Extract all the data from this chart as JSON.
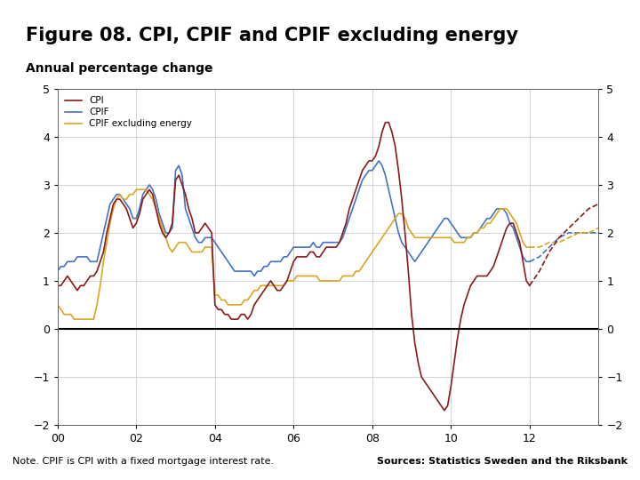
{
  "title": "Figure 08. CPI, CPIF and CPIF excluding energy",
  "subtitle": "Annual percentage change",
  "note": "Note. CPIF is CPI with a fixed mortgage interest rate.",
  "source": "Sources: Statistics Sweden and the Riksbank",
  "ylim": [
    -2,
    5
  ],
  "yticks": [
    -2,
    -1,
    0,
    1,
    2,
    3,
    4,
    5
  ],
  "xlim": [
    2000.0,
    2013.75
  ],
  "xtick_labels": [
    "00",
    "02",
    "04",
    "06",
    "08",
    "10",
    "12"
  ],
  "xtick_positions": [
    2000,
    2002,
    2004,
    2006,
    2008,
    2010,
    2012
  ],
  "forecast_start": 2012.0,
  "cpi_color": "#8B1A1A",
  "cpif_color": "#4472C4",
  "cpifex_color": "#DAA520",
  "background_color": "#FFFFFF",
  "bar_color": "#1F3864",
  "title_fontsize": 15,
  "subtitle_fontsize": 10,
  "note_fontsize": 8,
  "cpi_x": [
    2000.0,
    2000.083,
    2000.167,
    2000.25,
    2000.333,
    2000.417,
    2000.5,
    2000.583,
    2000.667,
    2000.75,
    2000.833,
    2000.917,
    2001.0,
    2001.083,
    2001.167,
    2001.25,
    2001.333,
    2001.417,
    2001.5,
    2001.583,
    2001.667,
    2001.75,
    2001.833,
    2001.917,
    2002.0,
    2002.083,
    2002.167,
    2002.25,
    2002.333,
    2002.417,
    2002.5,
    2002.583,
    2002.667,
    2002.75,
    2002.833,
    2002.917,
    2003.0,
    2003.083,
    2003.167,
    2003.25,
    2003.333,
    2003.417,
    2003.5,
    2003.583,
    2003.667,
    2003.75,
    2003.833,
    2003.917,
    2004.0,
    2004.083,
    2004.167,
    2004.25,
    2004.333,
    2004.417,
    2004.5,
    2004.583,
    2004.667,
    2004.75,
    2004.833,
    2004.917,
    2005.0,
    2005.083,
    2005.167,
    2005.25,
    2005.333,
    2005.417,
    2005.5,
    2005.583,
    2005.667,
    2005.75,
    2005.833,
    2005.917,
    2006.0,
    2006.083,
    2006.167,
    2006.25,
    2006.333,
    2006.417,
    2006.5,
    2006.583,
    2006.667,
    2006.75,
    2006.833,
    2006.917,
    2007.0,
    2007.083,
    2007.167,
    2007.25,
    2007.333,
    2007.417,
    2007.5,
    2007.583,
    2007.667,
    2007.75,
    2007.833,
    2007.917,
    2008.0,
    2008.083,
    2008.167,
    2008.25,
    2008.333,
    2008.417,
    2008.5,
    2008.583,
    2008.667,
    2008.75,
    2008.833,
    2008.917,
    2009.0,
    2009.083,
    2009.167,
    2009.25,
    2009.333,
    2009.417,
    2009.5,
    2009.583,
    2009.667,
    2009.75,
    2009.833,
    2009.917,
    2010.0,
    2010.083,
    2010.167,
    2010.25,
    2010.333,
    2010.417,
    2010.5,
    2010.583,
    2010.667,
    2010.75,
    2010.833,
    2010.917,
    2011.0,
    2011.083,
    2011.167,
    2011.25,
    2011.333,
    2011.417,
    2011.5,
    2011.583,
    2011.667,
    2011.75,
    2011.833,
    2011.917,
    2012.0
  ],
  "cpi_y": [
    0.9,
    0.9,
    1.0,
    1.1,
    1.0,
    0.9,
    0.8,
    0.9,
    0.9,
    1.0,
    1.1,
    1.1,
    1.2,
    1.4,
    1.6,
    2.0,
    2.3,
    2.6,
    2.7,
    2.7,
    2.6,
    2.5,
    2.3,
    2.1,
    2.2,
    2.4,
    2.7,
    2.8,
    2.9,
    2.8,
    2.5,
    2.2,
    2.0,
    1.9,
    2.0,
    2.2,
    3.1,
    3.2,
    3.0,
    2.8,
    2.5,
    2.3,
    2.0,
    2.0,
    2.1,
    2.2,
    2.1,
    2.0,
    0.5,
    0.4,
    0.4,
    0.3,
    0.3,
    0.2,
    0.2,
    0.2,
    0.3,
    0.3,
    0.2,
    0.3,
    0.5,
    0.6,
    0.7,
    0.8,
    0.9,
    1.0,
    0.9,
    0.8,
    0.8,
    0.9,
    1.0,
    1.2,
    1.4,
    1.5,
    1.5,
    1.5,
    1.5,
    1.6,
    1.6,
    1.5,
    1.5,
    1.6,
    1.7,
    1.7,
    1.7,
    1.7,
    1.8,
    2.0,
    2.2,
    2.5,
    2.7,
    2.9,
    3.1,
    3.3,
    3.4,
    3.5,
    3.5,
    3.6,
    3.8,
    4.1,
    4.3,
    4.3,
    4.1,
    3.8,
    3.3,
    2.7,
    2.0,
    1.2,
    0.3,
    -0.3,
    -0.7,
    -1.0,
    -1.1,
    -1.2,
    -1.3,
    -1.4,
    -1.5,
    -1.6,
    -1.7,
    -1.6,
    -1.2,
    -0.7,
    -0.2,
    0.2,
    0.5,
    0.7,
    0.9,
    1.0,
    1.1,
    1.1,
    1.1,
    1.1,
    1.2,
    1.3,
    1.5,
    1.7,
    1.9,
    2.1,
    2.2,
    2.2,
    2.0,
    1.8,
    1.4,
    1.0,
    0.9
  ],
  "cpif_x": [
    2000.0,
    2000.083,
    2000.167,
    2000.25,
    2000.333,
    2000.417,
    2000.5,
    2000.583,
    2000.667,
    2000.75,
    2000.833,
    2000.917,
    2001.0,
    2001.083,
    2001.167,
    2001.25,
    2001.333,
    2001.417,
    2001.5,
    2001.583,
    2001.667,
    2001.75,
    2001.833,
    2001.917,
    2002.0,
    2002.083,
    2002.167,
    2002.25,
    2002.333,
    2002.417,
    2002.5,
    2002.583,
    2002.667,
    2002.75,
    2002.833,
    2002.917,
    2003.0,
    2003.083,
    2003.167,
    2003.25,
    2003.333,
    2003.417,
    2003.5,
    2003.583,
    2003.667,
    2003.75,
    2003.833,
    2003.917,
    2004.0,
    2004.083,
    2004.167,
    2004.25,
    2004.333,
    2004.417,
    2004.5,
    2004.583,
    2004.667,
    2004.75,
    2004.833,
    2004.917,
    2005.0,
    2005.083,
    2005.167,
    2005.25,
    2005.333,
    2005.417,
    2005.5,
    2005.583,
    2005.667,
    2005.75,
    2005.833,
    2005.917,
    2006.0,
    2006.083,
    2006.167,
    2006.25,
    2006.333,
    2006.417,
    2006.5,
    2006.583,
    2006.667,
    2006.75,
    2006.833,
    2006.917,
    2007.0,
    2007.083,
    2007.167,
    2007.25,
    2007.333,
    2007.417,
    2007.5,
    2007.583,
    2007.667,
    2007.75,
    2007.833,
    2007.917,
    2008.0,
    2008.083,
    2008.167,
    2008.25,
    2008.333,
    2008.417,
    2008.5,
    2008.583,
    2008.667,
    2008.75,
    2008.833,
    2008.917,
    2009.0,
    2009.083,
    2009.167,
    2009.25,
    2009.333,
    2009.417,
    2009.5,
    2009.583,
    2009.667,
    2009.75,
    2009.833,
    2009.917,
    2010.0,
    2010.083,
    2010.167,
    2010.25,
    2010.333,
    2010.417,
    2010.5,
    2010.583,
    2010.667,
    2010.75,
    2010.833,
    2010.917,
    2011.0,
    2011.083,
    2011.167,
    2011.25,
    2011.333,
    2011.417,
    2011.5,
    2011.583,
    2011.667,
    2011.75,
    2011.833,
    2011.917,
    2012.0,
    2012.25,
    2012.5,
    2012.75,
    2013.0,
    2013.25,
    2013.5,
    2013.75
  ],
  "cpif_y": [
    1.2,
    1.3,
    1.3,
    1.4,
    1.4,
    1.4,
    1.5,
    1.5,
    1.5,
    1.5,
    1.4,
    1.4,
    1.4,
    1.7,
    2.0,
    2.3,
    2.6,
    2.7,
    2.8,
    2.8,
    2.7,
    2.6,
    2.5,
    2.3,
    2.3,
    2.5,
    2.8,
    2.9,
    3.0,
    2.9,
    2.7,
    2.4,
    2.2,
    2.0,
    2.0,
    2.1,
    3.3,
    3.4,
    3.2,
    2.5,
    2.3,
    2.1,
    1.9,
    1.8,
    1.8,
    1.9,
    1.9,
    1.9,
    1.8,
    1.7,
    1.6,
    1.5,
    1.4,
    1.3,
    1.2,
    1.2,
    1.2,
    1.2,
    1.2,
    1.2,
    1.1,
    1.2,
    1.2,
    1.3,
    1.3,
    1.4,
    1.4,
    1.4,
    1.4,
    1.5,
    1.5,
    1.6,
    1.7,
    1.7,
    1.7,
    1.7,
    1.7,
    1.7,
    1.8,
    1.7,
    1.7,
    1.8,
    1.8,
    1.8,
    1.8,
    1.8,
    1.8,
    1.9,
    2.1,
    2.3,
    2.5,
    2.7,
    2.9,
    3.1,
    3.2,
    3.3,
    3.3,
    3.4,
    3.5,
    3.4,
    3.2,
    2.9,
    2.6,
    2.3,
    2.0,
    1.8,
    1.7,
    1.6,
    1.5,
    1.4,
    1.5,
    1.6,
    1.7,
    1.8,
    1.9,
    2.0,
    2.1,
    2.2,
    2.3,
    2.3,
    2.2,
    2.1,
    2.0,
    1.9,
    1.9,
    1.9,
    1.9,
    2.0,
    2.0,
    2.1,
    2.2,
    2.3,
    2.3,
    2.4,
    2.5,
    2.5,
    2.5,
    2.4,
    2.2,
    2.1,
    1.9,
    1.7,
    1.5,
    1.4,
    1.4,
    1.5,
    1.7,
    1.9,
    2.0,
    2.0,
    2.0,
    2.0
  ],
  "cpifex_x": [
    2000.0,
    2000.083,
    2000.167,
    2000.25,
    2000.333,
    2000.417,
    2000.5,
    2000.583,
    2000.667,
    2000.75,
    2000.833,
    2000.917,
    2001.0,
    2001.083,
    2001.167,
    2001.25,
    2001.333,
    2001.417,
    2001.5,
    2001.583,
    2001.667,
    2001.75,
    2001.833,
    2001.917,
    2002.0,
    2002.083,
    2002.167,
    2002.25,
    2002.333,
    2002.417,
    2002.5,
    2002.583,
    2002.667,
    2002.75,
    2002.833,
    2002.917,
    2003.0,
    2003.083,
    2003.167,
    2003.25,
    2003.333,
    2003.417,
    2003.5,
    2003.583,
    2003.667,
    2003.75,
    2003.833,
    2003.917,
    2004.0,
    2004.083,
    2004.167,
    2004.25,
    2004.333,
    2004.417,
    2004.5,
    2004.583,
    2004.667,
    2004.75,
    2004.833,
    2004.917,
    2005.0,
    2005.083,
    2005.167,
    2005.25,
    2005.333,
    2005.417,
    2005.5,
    2005.583,
    2005.667,
    2005.75,
    2005.833,
    2005.917,
    2006.0,
    2006.083,
    2006.167,
    2006.25,
    2006.333,
    2006.417,
    2006.5,
    2006.583,
    2006.667,
    2006.75,
    2006.833,
    2006.917,
    2007.0,
    2007.083,
    2007.167,
    2007.25,
    2007.333,
    2007.417,
    2007.5,
    2007.583,
    2007.667,
    2007.75,
    2007.833,
    2007.917,
    2008.0,
    2008.083,
    2008.167,
    2008.25,
    2008.333,
    2008.417,
    2008.5,
    2008.583,
    2008.667,
    2008.75,
    2008.833,
    2008.917,
    2009.0,
    2009.083,
    2009.167,
    2009.25,
    2009.333,
    2009.417,
    2009.5,
    2009.583,
    2009.667,
    2009.75,
    2009.833,
    2009.917,
    2010.0,
    2010.083,
    2010.167,
    2010.25,
    2010.333,
    2010.417,
    2010.5,
    2010.583,
    2010.667,
    2010.75,
    2010.833,
    2010.917,
    2011.0,
    2011.083,
    2011.167,
    2011.25,
    2011.333,
    2011.417,
    2011.5,
    2011.583,
    2011.667,
    2011.75,
    2011.833,
    2011.917,
    2012.0,
    2012.25,
    2012.5,
    2012.75,
    2013.0,
    2013.25,
    2013.5,
    2013.75
  ],
  "cpifex_y": [
    0.5,
    0.4,
    0.3,
    0.3,
    0.3,
    0.2,
    0.2,
    0.2,
    0.2,
    0.2,
    0.2,
    0.2,
    0.5,
    0.9,
    1.4,
    1.8,
    2.2,
    2.5,
    2.7,
    2.8,
    2.7,
    2.7,
    2.8,
    2.8,
    2.9,
    2.9,
    2.9,
    2.9,
    2.8,
    2.7,
    2.5,
    2.3,
    2.1,
    1.9,
    1.7,
    1.6,
    1.7,
    1.8,
    1.8,
    1.8,
    1.7,
    1.6,
    1.6,
    1.6,
    1.6,
    1.7,
    1.7,
    1.7,
    0.7,
    0.7,
    0.6,
    0.6,
    0.5,
    0.5,
    0.5,
    0.5,
    0.5,
    0.6,
    0.6,
    0.7,
    0.8,
    0.8,
    0.9,
    0.9,
    0.9,
    0.9,
    0.9,
    0.9,
    0.9,
    0.9,
    1.0,
    1.0,
    1.0,
    1.1,
    1.1,
    1.1,
    1.1,
    1.1,
    1.1,
    1.1,
    1.0,
    1.0,
    1.0,
    1.0,
    1.0,
    1.0,
    1.0,
    1.1,
    1.1,
    1.1,
    1.1,
    1.2,
    1.2,
    1.3,
    1.4,
    1.5,
    1.6,
    1.7,
    1.8,
    1.9,
    2.0,
    2.1,
    2.2,
    2.3,
    2.4,
    2.4,
    2.3,
    2.1,
    2.0,
    1.9,
    1.9,
    1.9,
    1.9,
    1.9,
    1.9,
    1.9,
    1.9,
    1.9,
    1.9,
    1.9,
    1.9,
    1.8,
    1.8,
    1.8,
    1.8,
    1.9,
    1.9,
    2.0,
    2.0,
    2.1,
    2.1,
    2.2,
    2.2,
    2.3,
    2.4,
    2.5,
    2.5,
    2.5,
    2.4,
    2.3,
    2.2,
    2.0,
    1.8,
    1.7,
    1.7,
    1.7,
    1.8,
    1.8,
    1.9,
    2.0,
    2.0,
    2.1
  ],
  "cpi_forecast_x": [
    2012.0,
    2012.25,
    2012.5,
    2012.75,
    2013.0,
    2013.25,
    2013.5,
    2013.75
  ],
  "cpi_forecast_y": [
    0.9,
    1.2,
    1.6,
    1.9,
    2.1,
    2.3,
    2.5,
    2.6
  ]
}
